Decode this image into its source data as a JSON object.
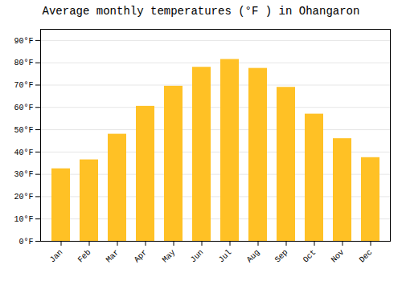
{
  "chart_data": {
    "type": "bar",
    "title": "Average monthly temperatures (°F ) in Ohangaron",
    "categories": [
      "Jan",
      "Feb",
      "Mar",
      "Apr",
      "May",
      "Jun",
      "Jul",
      "Aug",
      "Sep",
      "Oct",
      "Nov",
      "Dec"
    ],
    "values": [
      32.5,
      36.5,
      48.0,
      60.5,
      69.5,
      78.0,
      81.5,
      77.5,
      69.0,
      57.0,
      46.0,
      37.5
    ],
    "color": "#FFC125",
    "ylim": [
      0,
      95
    ],
    "yticks": [
      {
        "value": 0,
        "label": "0°F"
      },
      {
        "value": 10,
        "label": "10°F"
      },
      {
        "value": 20,
        "label": "20°F"
      },
      {
        "value": 30,
        "label": "30°F"
      },
      {
        "value": 40,
        "label": "40°F"
      },
      {
        "value": 50,
        "label": "50°F"
      },
      {
        "value": 60,
        "label": "60°F"
      },
      {
        "value": 70,
        "label": "70°F"
      },
      {
        "value": 80,
        "label": "80°F"
      },
      {
        "value": 90,
        "label": "90°F"
      }
    ],
    "grid": true
  }
}
